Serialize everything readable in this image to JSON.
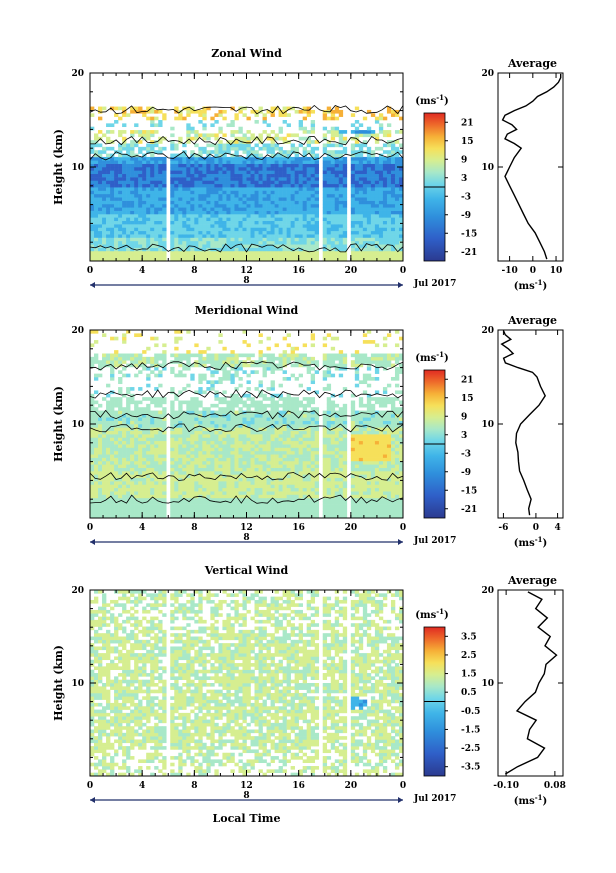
{
  "chart_data": [
    {
      "type": "heatmap",
      "title": "Zonal Wind",
      "ylabel": "Height (km)",
      "ylim": [
        0,
        20
      ],
      "yticks": [
        "20",
        "10"
      ],
      "x_ticks": [
        "0",
        "4",
        "8",
        "12",
        "16",
        "20",
        "0"
      ],
      "xlim": [
        0,
        24
      ],
      "day_label": "8",
      "month_label": "Jul 2017",
      "colorbar": {
        "unit": "(ms",
        "unit_exp": "-1",
        "unit_close": ")",
        "ticks": [
          "21",
          "15",
          "9",
          "3",
          "-3",
          "-9",
          "-15",
          "-21"
        ],
        "range": [
          -24,
          24
        ]
      },
      "avg_title": "Average",
      "avg_xticks": [
        "-10",
        "0",
        "10"
      ],
      "avg_xlim": [
        -15,
        13
      ],
      "avg_yticks": [
        "20",
        "10"
      ],
      "avg_xlabel": "(ms",
      "avg_xlabel_exp": "-1",
      "avg_xlabel_close": ")",
      "profile": {
        "height": [
          0.2,
          1,
          2,
          3,
          4,
          5,
          6,
          7,
          8,
          9,
          10,
          11,
          12,
          12.5,
          13,
          13.5,
          14,
          14.5,
          15,
          15.5,
          16,
          16.5,
          17,
          17.5,
          18,
          18.5,
          19,
          19.5,
          19.9
        ],
        "value": [
          6,
          5,
          3,
          1,
          -2,
          -4,
          -6,
          -8,
          -10,
          -12,
          -10,
          -8,
          -5,
          -8,
          -12,
          -11,
          -7,
          -9,
          -13,
          -12,
          -8,
          -3,
          0,
          2,
          6,
          9,
          11,
          12,
          12
        ]
      }
    },
    {
      "type": "heatmap",
      "title": "Meridional Wind",
      "ylabel": "Height (km)",
      "ylim": [
        0,
        20
      ],
      "yticks": [
        "20",
        "10"
      ],
      "x_ticks": [
        "0",
        "4",
        "8",
        "12",
        "16",
        "20",
        "0"
      ],
      "xlim": [
        0,
        24
      ],
      "day_label": "8",
      "month_label": "Jul 2017",
      "colorbar": {
        "unit": "(ms",
        "unit_exp": "-1",
        "unit_close": ")",
        "ticks": [
          "21",
          "15",
          "9",
          "3",
          "-3",
          "-9",
          "-15",
          "-21"
        ],
        "range": [
          -24,
          24
        ]
      },
      "avg_title": "Average",
      "avg_xticks": [
        "-6",
        "0",
        "4"
      ],
      "avg_xlim": [
        -7,
        5
      ],
      "avg_yticks": [
        "20",
        "10"
      ],
      "avg_xlabel": "(ms",
      "avg_xlabel_exp": "-1",
      "avg_xlabel_close": ")",
      "profile": {
        "height": [
          0.3,
          1,
          2,
          3,
          4,
          5,
          6,
          7,
          8,
          9,
          10,
          11,
          12,
          13,
          14,
          15,
          15.5,
          16,
          16.5,
          17,
          17.5,
          18,
          18.5,
          19,
          19.5,
          19.9
        ],
        "value": [
          -1,
          -1.5,
          -0.8,
          -1.6,
          -2.2,
          -2.8,
          -3.0,
          -3.4,
          -3.8,
          -3.5,
          -2.6,
          -1.2,
          0.5,
          1.5,
          1.0,
          0.2,
          -0.8,
          -3.5,
          -5.5,
          -5.8,
          -4.0,
          -5.0,
          -6.2,
          -4.5,
          -5.5,
          -6.0
        ]
      }
    },
    {
      "type": "heatmap",
      "title": "Vertical Wind",
      "ylabel": "Height (km)",
      "ylim": [
        0,
        20
      ],
      "yticks": [
        "20",
        "10"
      ],
      "x_ticks": [
        "0",
        "4",
        "8",
        "12",
        "16",
        "20",
        "0"
      ],
      "xlim": [
        0,
        24
      ],
      "day_label": "8",
      "month_label": "Jul 2017",
      "xlabel": "Local Time",
      "colorbar": {
        "unit": "(ms",
        "unit_exp": "-1",
        "unit_close": ")",
        "ticks": [
          "3.5",
          "2.5",
          "1.5",
          "0.5",
          "-0.5",
          "-1.5",
          "-2.5",
          "-3.5"
        ],
        "range": [
          -4,
          4
        ]
      },
      "avg_title": "Average",
      "avg_xticks": [
        "-0.10",
        "0.08"
      ],
      "avg_xlim": [
        -0.13,
        0.11
      ],
      "avg_yticks": [
        "20",
        "10"
      ],
      "avg_xlabel": "(ms",
      "avg_xlabel_exp": "-1",
      "avg_xlabel_close": ")",
      "profile": {
        "height": [
          0.2,
          1,
          2,
          3,
          4,
          5,
          6,
          7,
          8,
          9,
          10,
          11,
          12,
          13,
          14,
          15,
          16,
          17,
          18,
          19,
          19.8
        ],
        "value": [
          -0.1,
          -0.06,
          0.02,
          0.04,
          -0.02,
          -0.01,
          0.01,
          -0.06,
          -0.03,
          0.01,
          0.02,
          0.04,
          0.05,
          0.09,
          0.04,
          0.06,
          0.02,
          0.05,
          0.01,
          0.03,
          -0.02
        ]
      }
    }
  ],
  "colors": {
    "scale": [
      "#2b3a8f",
      "#2f5fc8",
      "#2f8fdc",
      "#3fb4e8",
      "#6fd6e8",
      "#a8e8c8",
      "#d6ee90",
      "#f6e05a",
      "#f6b037",
      "#ee6a2a",
      "#e02a22"
    ]
  }
}
